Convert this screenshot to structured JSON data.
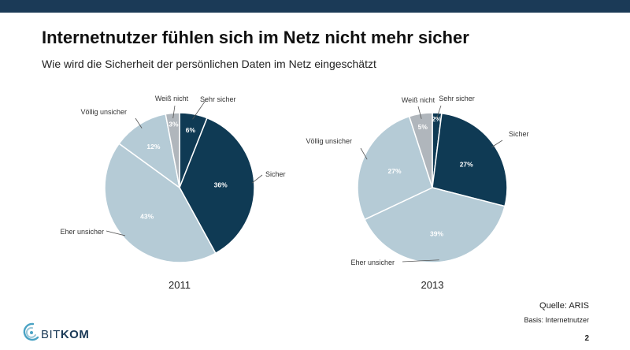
{
  "header": {
    "title": "Internetnutzer fühlen sich im Netz nicht mehr sicher",
    "subtitle": "Wie wird die Sicherheit der persönlichen Daten im Netz eingeschätzt"
  },
  "colors": {
    "topbar": "#1b3a57",
    "sehr_sicher": "#0f3a54",
    "sicher": "#0f3a54",
    "eher_unsicher": "#b5cbd6",
    "voellig_unsicher": "#b5cbd6",
    "weiss_nicht": "#b0b6bc"
  },
  "chart_data": [
    {
      "type": "pie",
      "title": "2011",
      "categories": [
        "Sehr sicher",
        "Sicher",
        "Eher unsicher",
        "Völlig unsicher",
        "Weiß nicht"
      ],
      "values": [
        6,
        36,
        43,
        12,
        3
      ],
      "labels": [
        "6%",
        "36%",
        "43%",
        "12%",
        "3%"
      ]
    },
    {
      "type": "pie",
      "title": "2013",
      "categories": [
        "Sehr sicher",
        "Sicher",
        "Eher unsicher",
        "Völlig unsicher",
        "Weiß nicht"
      ],
      "values": [
        2,
        27,
        39,
        27,
        5
      ],
      "labels": [
        "2%",
        "27%",
        "39%",
        "27%",
        "5%"
      ]
    }
  ],
  "footer": {
    "source": "Quelle: ARIS",
    "basis": "Basis: Internetnutzer",
    "page_number": "2",
    "logo_bit": "BIT",
    "logo_kom": "KOM"
  }
}
